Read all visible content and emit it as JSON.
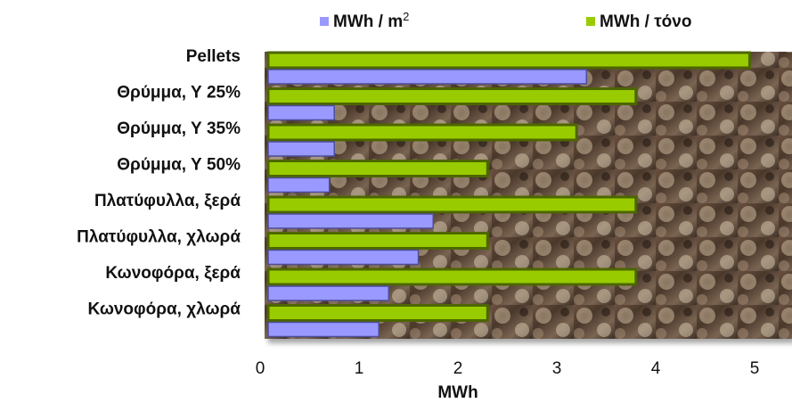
{
  "chart_data": {
    "type": "bar",
    "orientation": "horizontal",
    "categories": [
      "Pellets",
      "Θρύμμα, Υ 25%",
      "Θρύμμα, Υ 35%",
      "Θρύμμα, Υ 50%",
      "Πλατύφυλλα, ξερά",
      "Πλατύφυλλα, χλωρά",
      "Κωνοφόρα, ξερά",
      "Κωνοφόρα, χλωρά"
    ],
    "series": [
      {
        "name": "MWh / m",
        "name_superscript": "2",
        "color": "#9999ff",
        "values": [
          3.3,
          0.75,
          0.75,
          0.7,
          1.75,
          1.6,
          1.3,
          1.2
        ]
      },
      {
        "name": "MWh / τόνο",
        "color": "#99cc00",
        "values": [
          4.95,
          3.8,
          3.2,
          2.3,
          3.8,
          2.3,
          3.8,
          2.3
        ]
      }
    ],
    "xlabel": "MWh",
    "ylabel": "",
    "xlim": [
      0,
      5
    ],
    "xticks": [
      "0",
      "1",
      "2",
      "3",
      "4",
      "5"
    ],
    "legend_position": "top",
    "background": "photo of stacked logs"
  }
}
